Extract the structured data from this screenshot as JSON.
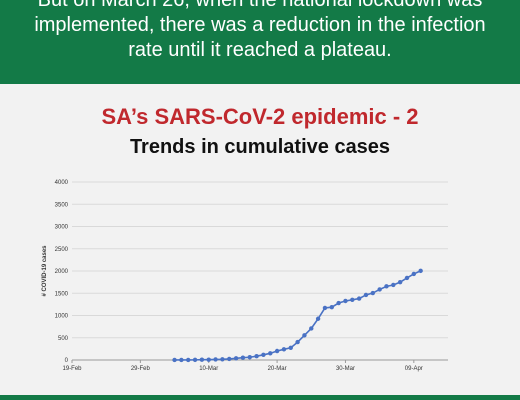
{
  "banner": {
    "lines": [
      "But on March 26, when the national lockdown was",
      "implemented, there was a reduction in the infection",
      "rate until it reached a plateau."
    ]
  },
  "colors": {
    "banner_bg": "#137a47",
    "title": "#c0282d",
    "series": "#4a72c4",
    "page_bg": "#f2f2f2"
  },
  "chart_data": {
    "type": "line",
    "title": "SA’s SARS-CoV-2 epidemic - 2",
    "subtitle": "Trends in cumulative cases",
    "xlabel": "",
    "ylabel": "# COVID-19 cases",
    "x_ticks": [
      "19-Feb",
      "29-Feb",
      "10-Mar",
      "20-Mar",
      "30-Mar",
      "09-Apr"
    ],
    "x_range": [
      "2020-02-19",
      "2020-04-14"
    ],
    "y_ticks": [
      0,
      500,
      1000,
      1500,
      2000,
      2500,
      3000,
      3500,
      4000
    ],
    "ylim": [
      0,
      4000
    ],
    "grid": "horizontal",
    "marker": "circle",
    "series": [
      {
        "name": "",
        "x": [
          "2020-03-05",
          "2020-03-06",
          "2020-03-07",
          "2020-03-08",
          "2020-03-09",
          "2020-03-10",
          "2020-03-11",
          "2020-03-12",
          "2020-03-13",
          "2020-03-14",
          "2020-03-15",
          "2020-03-16",
          "2020-03-17",
          "2020-03-18",
          "2020-03-19",
          "2020-03-20",
          "2020-03-21",
          "2020-03-22",
          "2020-03-23",
          "2020-03-24",
          "2020-03-25",
          "2020-03-26",
          "2020-03-27",
          "2020-03-28",
          "2020-03-29",
          "2020-03-30",
          "2020-03-31",
          "2020-04-01",
          "2020-04-02",
          "2020-04-03",
          "2020-04-04",
          "2020-04-05",
          "2020-04-06",
          "2020-04-07",
          "2020-04-08",
          "2020-04-09",
          "2020-04-10"
        ],
        "values": [
          1,
          1,
          2,
          3,
          7,
          7,
          13,
          16,
          24,
          38,
          51,
          62,
          85,
          116,
          150,
          202,
          240,
          274,
          402,
          554,
          709,
          927,
          1170,
          1187,
          1280,
          1326,
          1353,
          1380,
          1462,
          1505,
          1585,
          1655,
          1686,
          1749,
          1845,
          1934,
          2003
        ]
      }
    ]
  }
}
